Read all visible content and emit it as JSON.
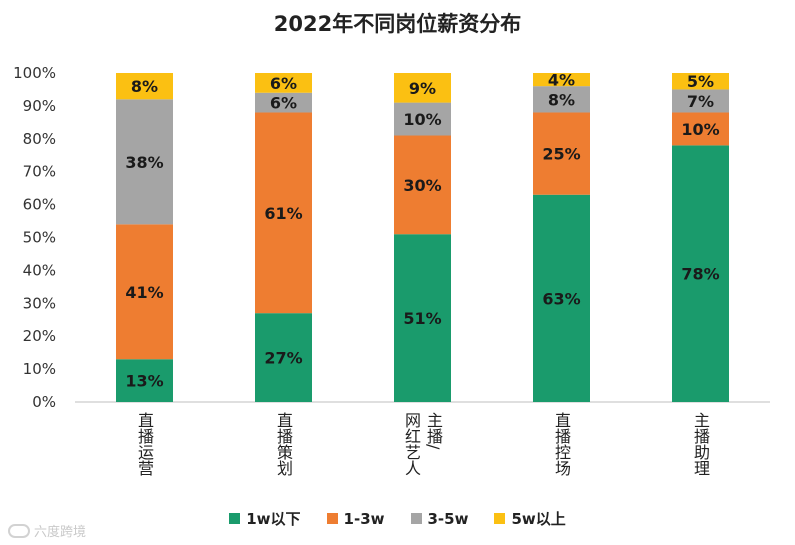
{
  "chart_data": {
    "type": "bar",
    "stacked": true,
    "title": "2022年不同岗位薪资分布",
    "categories": [
      "直播运营",
      "直播策划",
      "网红艺人主播/",
      "直播控场",
      "主播助理"
    ],
    "category_label_columns": [
      [
        "直播运营"
      ],
      [
        "直播策划"
      ],
      [
        "网红艺人",
        "主播/"
      ],
      [
        "直播控场"
      ],
      [
        "主播助理"
      ]
    ],
    "series": [
      {
        "name": "1w以下",
        "values": [
          13,
          27,
          51,
          63,
          78
        ],
        "color": "#1a9b6c"
      },
      {
        "name": "1-3w",
        "values": [
          41,
          61,
          30,
          25,
          10
        ],
        "color": "#ee7d31"
      },
      {
        "name": "3-5w",
        "values": [
          38,
          6,
          10,
          8,
          7
        ],
        "color": "#a5a5a5"
      },
      {
        "name": "5w以上",
        "values": [
          8,
          6,
          9,
          4,
          5
        ],
        "color": "#fbc012"
      }
    ],
    "ylim": [
      0,
      100
    ],
    "yticks": [
      "0%",
      "10%",
      "20%",
      "30%",
      "40%",
      "50%",
      "60%",
      "70%",
      "80%",
      "90%",
      "100%"
    ],
    "value_suffix": "%",
    "legend_position": "bottom",
    "grid": false
  },
  "watermark": "六度跨境"
}
